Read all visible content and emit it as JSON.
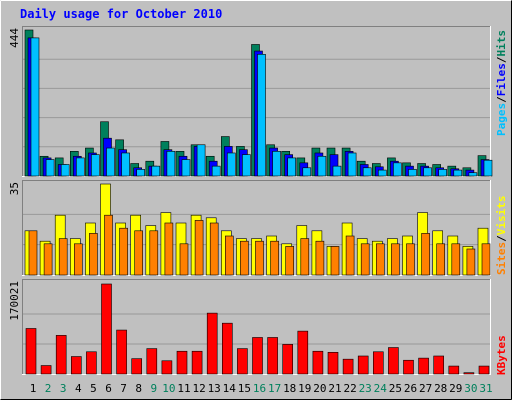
{
  "chart_data": [
    {
      "type": "bar",
      "title": "Daily usage for October 2010",
      "panel": "hits-files-pages",
      "y_max_label": "444",
      "categories": [
        "1",
        "2",
        "3",
        "4",
        "5",
        "6",
        "7",
        "8",
        "9",
        "10",
        "11",
        "12",
        "13",
        "14",
        "15",
        "16",
        "17",
        "18",
        "19",
        "20",
        "21",
        "22",
        "23",
        "24",
        "25",
        "26",
        "27",
        "28",
        "29",
        "30",
        "31"
      ],
      "weekend_days": [
        "2",
        "3",
        "9",
        "10",
        "16",
        "17",
        "23",
        "24",
        "30",
        "31"
      ],
      "ylim": [
        0,
        444
      ],
      "series": [
        {
          "name": "Hits",
          "color": "#00805c",
          "values": [
            444,
            60,
            55,
            75,
            85,
            165,
            110,
            38,
            45,
            105,
            75,
            95,
            60,
            120,
            90,
            400,
            95,
            75,
            55,
            85,
            85,
            85,
            45,
            38,
            55,
            40,
            38,
            35,
            30,
            25,
            62
          ]
        },
        {
          "name": "Files",
          "color": "#0000ff",
          "values": [
            420,
            55,
            35,
            60,
            70,
            115,
            80,
            25,
            30,
            80,
            60,
            90,
            45,
            90,
            80,
            380,
            85,
            65,
            40,
            70,
            65,
            75,
            35,
            28,
            45,
            30,
            30,
            25,
            22,
            18,
            50
          ]
        },
        {
          "name": "Pages",
          "color": "#00c0ff",
          "values": [
            420,
            50,
            35,
            55,
            65,
            85,
            70,
            20,
            30,
            75,
            50,
            95,
            30,
            70,
            65,
            370,
            75,
            55,
            25,
            60,
            30,
            70,
            25,
            18,
            40,
            20,
            25,
            20,
            18,
            10,
            48
          ]
        }
      ]
    },
    {
      "type": "bar",
      "panel": "visits-sites",
      "y_max_label": "35",
      "categories": [
        "1",
        "2",
        "3",
        "4",
        "5",
        "6",
        "7",
        "8",
        "9",
        "10",
        "11",
        "12",
        "13",
        "14",
        "15",
        "16",
        "17",
        "18",
        "19",
        "20",
        "21",
        "22",
        "23",
        "24",
        "25",
        "26",
        "27",
        "28",
        "29",
        "30",
        "31"
      ],
      "ylim": [
        0,
        35
      ],
      "series": [
        {
          "name": "Visits",
          "color": "#ffff00",
          "values": [
            17,
            13,
            23,
            14,
            20,
            35,
            20,
            23,
            19,
            24,
            20,
            23,
            22,
            17,
            14,
            14,
            15,
            12,
            19,
            17,
            11,
            20,
            14,
            13,
            14,
            15,
            24,
            17,
            15,
            11,
            18
          ]
        },
        {
          "name": "Sites",
          "color": "#ff8000",
          "values": [
            17,
            12,
            14,
            12,
            16,
            23,
            18,
            17,
            17,
            20,
            12,
            21,
            20,
            15,
            13,
            13,
            13,
            11,
            14,
            13,
            11,
            15,
            12,
            12,
            12,
            12,
            16,
            12,
            12,
            10,
            12
          ]
        }
      ]
    },
    {
      "type": "bar",
      "panel": "kbytes",
      "y_max_label": "170021",
      "categories": [
        "1",
        "2",
        "3",
        "4",
        "5",
        "6",
        "7",
        "8",
        "9",
        "10",
        "11",
        "12",
        "13",
        "14",
        "15",
        "16",
        "17",
        "18",
        "19",
        "20",
        "21",
        "22",
        "23",
        "24",
        "25",
        "26",
        "27",
        "28",
        "29",
        "30",
        "31"
      ],
      "ylim": [
        0,
        170021
      ],
      "series": [
        {
          "name": "KBytes",
          "color": "#ff0000",
          "values": [
            86000,
            16000,
            73000,
            33000,
            42000,
            170021,
            83000,
            29000,
            48000,
            25000,
            43000,
            43000,
            115000,
            96000,
            48000,
            69000,
            69000,
            56000,
            81000,
            43000,
            41000,
            28000,
            34000,
            42000,
            50000,
            26000,
            30000,
            34000,
            15000,
            2500,
            15000
          ]
        }
      ]
    }
  ],
  "legends": {
    "top": [
      {
        "text": "Pages",
        "color": "#00c0ff"
      },
      {
        "text": "/",
        "color": "#000000"
      },
      {
        "text": "Files",
        "color": "#0000ff"
      },
      {
        "text": "/",
        "color": "#000000"
      },
      {
        "text": "Hits",
        "color": "#00805c"
      }
    ],
    "middle": [
      {
        "text": "Sites",
        "color": "#ff8000"
      },
      {
        "text": "/",
        "color": "#000000"
      },
      {
        "text": "Visits",
        "color": "#ffff00"
      }
    ],
    "bottom": [
      {
        "text": "KBytes",
        "color": "#ff0000"
      }
    ]
  },
  "colors": {
    "background": "#c0c0c0",
    "title": "#0000ff",
    "weekday_label": "#000000",
    "weekend_label": "#00805c",
    "gridline": "#999999"
  }
}
